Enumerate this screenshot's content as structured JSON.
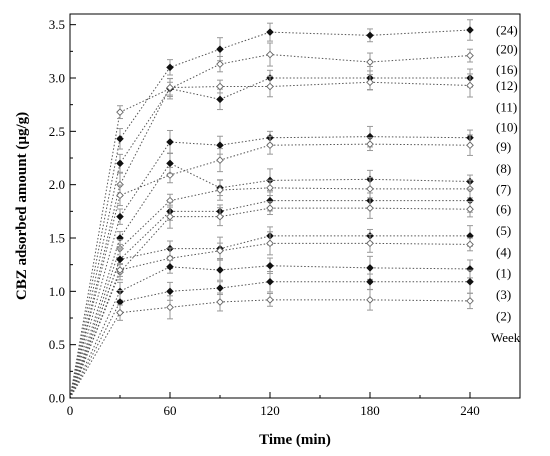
{
  "chart_data": {
    "type": "line",
    "xlabel": "Time (min)",
    "ylabel": "CBZ adsorbed amount (µg/g)",
    "xlim": [
      0,
      270
    ],
    "ylim": [
      0.0,
      3.6
    ],
    "x_ticks": [
      0,
      60,
      120,
      180,
      240
    ],
    "y_ticks": [
      "0.0",
      "0.5",
      "1.0",
      "1.5",
      "2.0",
      "2.5",
      "3.0",
      "3.5"
    ],
    "x": [
      0,
      30,
      60,
      90,
      120,
      180,
      240
    ],
    "legend_title": "Week",
    "series": [
      {
        "name": "(24)",
        "values": [
          0,
          2.43,
          3.1,
          3.27,
          3.43,
          3.4,
          3.45
        ],
        "marker": "filled",
        "label_y": 3.45
      },
      {
        "name": "(20)",
        "values": [
          0,
          2.68,
          2.9,
          3.13,
          3.22,
          3.15,
          3.21
        ],
        "marker": "open",
        "label_y": 3.27
      },
      {
        "name": "(16)",
        "values": [
          0,
          2.2,
          2.9,
          2.8,
          3.0,
          3.0,
          3.0
        ],
        "marker": "filled",
        "label_y": 3.08
      },
      {
        "name": "(12)",
        "values": [
          0,
          2.0,
          2.91,
          2.92,
          2.92,
          2.96,
          2.93
        ],
        "marker": "open",
        "label_y": 2.93
      },
      {
        "name": "(11)",
        "values": [
          0,
          1.7,
          2.4,
          2.37,
          2.44,
          2.45,
          2.44
        ],
        "marker": "filled",
        "label_y": 2.73
      },
      {
        "name": "(10)",
        "values": [
          0,
          1.9,
          2.09,
          2.23,
          2.37,
          2.38,
          2.37
        ],
        "marker": "open",
        "label_y": 2.54
      },
      {
        "name": "(9)",
        "values": [
          0,
          1.5,
          2.2,
          1.97,
          2.04,
          2.05,
          2.03
        ],
        "marker": "filled",
        "label_y": 2.36
      },
      {
        "name": "(8)",
        "values": [
          0,
          1.4,
          1.85,
          1.95,
          1.97,
          1.96,
          1.96
        ],
        "marker": "open",
        "label_y": 2.15
      },
      {
        "name": "(7)",
        "values": [
          0,
          1.3,
          1.75,
          1.75,
          1.85,
          1.85,
          1.85
        ],
        "marker": "filled",
        "label_y": 1.96
      },
      {
        "name": "(6)",
        "values": [
          0,
          1.18,
          1.7,
          1.7,
          1.78,
          1.78,
          1.77
        ],
        "marker": "open",
        "label_y": 1.77
      },
      {
        "name": "(5)",
        "values": [
          0,
          1.3,
          1.4,
          1.4,
          1.52,
          1.52,
          1.52
        ],
        "marker": "filled",
        "label_y": 1.57
      },
      {
        "name": "(4)",
        "values": [
          0,
          1.2,
          1.31,
          1.38,
          1.45,
          1.45,
          1.44
        ],
        "marker": "open",
        "label_y": 1.37
      },
      {
        "name": "(1)",
        "values": [
          0,
          1.0,
          1.23,
          1.2,
          1.24,
          1.22,
          1.21
        ],
        "marker": "filled",
        "label_y": 1.17
      },
      {
        "name": "(3)",
        "values": [
          0,
          0.9,
          1.0,
          1.03,
          1.09,
          1.09,
          1.09
        ],
        "marker": "filled",
        "label_y": 0.97
      },
      {
        "name": "(2)",
        "values": [
          0,
          0.8,
          0.85,
          0.9,
          0.92,
          0.92,
          0.91
        ],
        "marker": "open",
        "label_y": 0.77
      }
    ]
  }
}
